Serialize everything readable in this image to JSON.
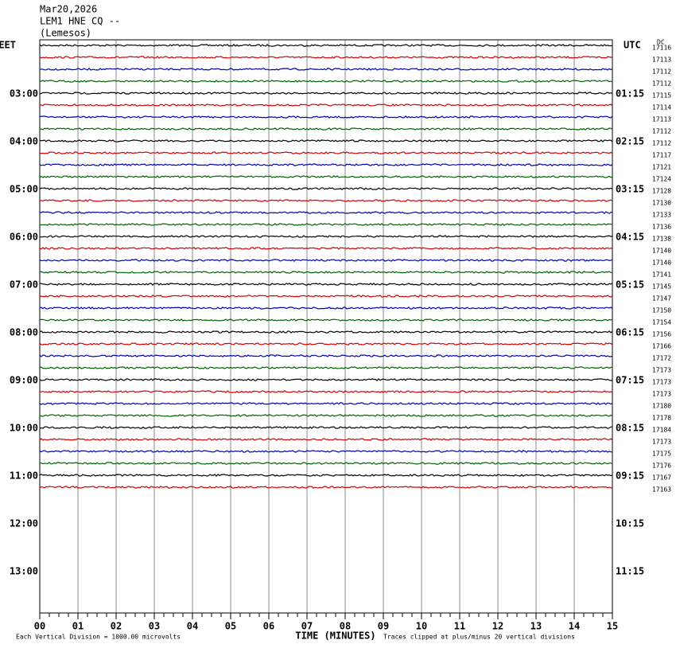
{
  "chart_data": {
    "type": "helicorder",
    "date": "Mar20,2026",
    "station": "LEM1 HNE CQ --",
    "location": "(Lemesos)",
    "left_zone": "EET",
    "right_zone": "UTC",
    "dc_header": "DC",
    "left_labels": [
      "03:00",
      "04:00",
      "05:00",
      "06:00",
      "07:00",
      "08:00",
      "09:00",
      "10:00",
      "11:00",
      "12:00",
      "13:00"
    ],
    "right_labels": [
      "01:15",
      "02:15",
      "03:15",
      "04:15",
      "05:15",
      "06:15",
      "07:15",
      "08:15",
      "09:15",
      "10:15",
      "11:15"
    ],
    "dc_values": [
      17116,
      17113,
      17112,
      17112,
      17115,
      17114,
      17113,
      17112,
      17112,
      17117,
      17121,
      17124,
      17128,
      17130,
      17133,
      17136,
      17138,
      17140,
      17140,
      17141,
      17145,
      17147,
      17150,
      17154,
      17156,
      17166,
      17172,
      17173,
      17173,
      17173,
      17180,
      17178,
      17184,
      17173,
      17175,
      17176,
      17167,
      17163
    ],
    "trace_colors": [
      "#000000",
      "#d00000",
      "#0000b0",
      "#006400"
    ],
    "xlabel": "TIME (MINUTES)",
    "scale_note": "Each Vertical Division = 1000.00 microvolts",
    "clip_note": "Traces clipped at plus/minus 20 vertical divisions",
    "xlim": [
      0,
      15
    ],
    "xticks": [
      {
        "value": 0,
        "label": "00"
      },
      {
        "value": 1,
        "label": "01"
      },
      {
        "value": 2,
        "label": "02"
      },
      {
        "value": 3,
        "label": "03"
      },
      {
        "value": 4,
        "label": "04"
      },
      {
        "value": 5,
        "label": "05"
      },
      {
        "value": 6,
        "label": "06"
      },
      {
        "value": 7,
        "label": "07"
      },
      {
        "value": 8,
        "label": "08"
      },
      {
        "value": 9,
        "label": "09"
      },
      {
        "value": 10,
        "label": "10"
      },
      {
        "value": 11,
        "label": "11"
      },
      {
        "value": 12,
        "label": "12"
      },
      {
        "value": 13,
        "label": "13"
      },
      {
        "value": 14,
        "label": "14"
      },
      {
        "value": 15,
        "label": "15"
      }
    ],
    "grid": true
  }
}
